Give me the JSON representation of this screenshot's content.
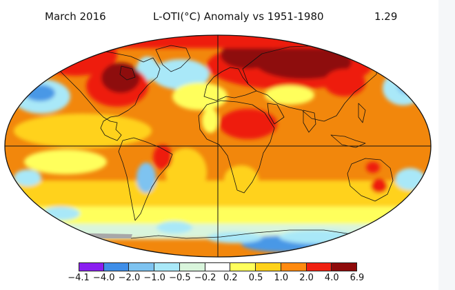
{
  "header": {
    "date": "March 2016",
    "title": "L-OTI(°C) Anomaly vs 1951-1980",
    "global_mean": "1.29"
  },
  "legend": {
    "colors": [
      "#8a1ef0",
      "#3f8ee8",
      "#7ec3f0",
      "#a9e8f8",
      "#d9f5dc",
      "#ffffff",
      "#ffff5c",
      "#ffd21a",
      "#ff8a0f",
      "#f02010",
      "#8e0a0a"
    ],
    "labels": [
      "−4.1",
      "−4.0",
      "−2.0",
      "−1.0",
      "−0.5",
      "−0.2",
      "0.2",
      "0.5",
      "1.0",
      "2.0",
      "4.0",
      "6.9"
    ]
  },
  "map_colors": {
    "ocean_base": "#f2870c",
    "warm_mid": "#ff9a14",
    "yellow": "#ffd21a",
    "pale_yellow": "#ffff5c",
    "red": "#ee1c0e",
    "dark_red": "#8e0a0a",
    "light_blue": "#a9e8f8",
    "mid_blue": "#7ec3f0",
    "blue": "#4a98e6",
    "pale_green": "#d9f5dc",
    "white": "#ffffff",
    "nodata": "#a8a8a8",
    "coast": "#111111"
  }
}
